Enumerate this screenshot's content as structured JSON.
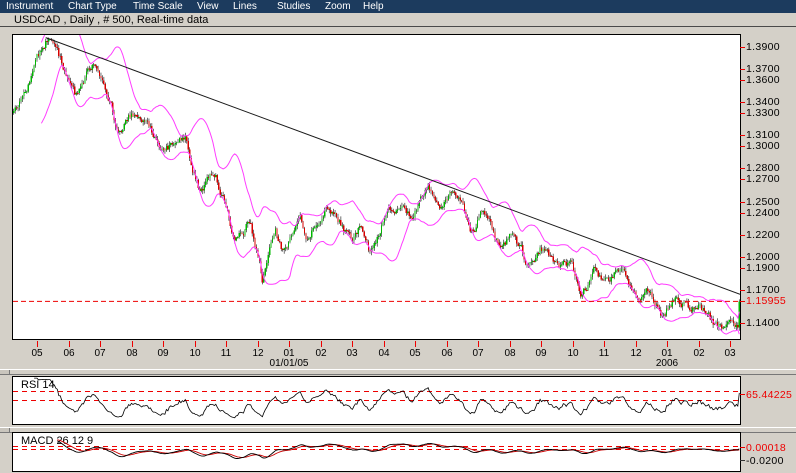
{
  "menu": {
    "items": [
      {
        "label": "Instrument"
      },
      {
        "label": "Chart Type"
      },
      {
        "label": "Time Scale"
      },
      {
        "label": "View"
      },
      {
        "label": "Lines"
      },
      {
        "label": "Studies"
      },
      {
        "label": "Zoom"
      },
      {
        "label": "Help"
      }
    ]
  },
  "title_bar": {
    "text": "USDCAD , Daily , # 500, Real-time data"
  },
  "chart": {
    "instrument": "USDCAD",
    "timeframe": "Daily",
    "bars": 500,
    "last_price": 1.15955,
    "current_price_label": "1.15955",
    "price_axis_labels": [
      "1.3900",
      "1.3700",
      "1.3600",
      "1.3400",
      "1.3300",
      "1.3100",
      "1.3000",
      "1.2800",
      "1.2700",
      "1.2500",
      "1.2400",
      "1.2200",
      "1.2000",
      "1.1900",
      "1.1700",
      "1.1400"
    ],
    "months": [
      "05",
      "06",
      "07",
      "08",
      "09",
      "10",
      "11",
      "12",
      "01",
      "02",
      "03",
      "04",
      "05",
      "06",
      "07",
      "08",
      "09",
      "10",
      "11",
      "12",
      "01",
      "02",
      "03"
    ],
    "year_labels": [
      {
        "text": "01/01/05",
        "month_index": 8
      },
      {
        "text": "2006",
        "month_index": 20
      }
    ],
    "price_path": [
      [
        0,
        1.33
      ],
      [
        24,
        1.397
      ],
      [
        42,
        1.347
      ],
      [
        55,
        1.372
      ],
      [
        73,
        1.312
      ],
      [
        84,
        1.331
      ],
      [
        104,
        1.296
      ],
      [
        118,
        1.307
      ],
      [
        128,
        1.262
      ],
      [
        139,
        1.278
      ],
      [
        152,
        1.218
      ],
      [
        163,
        1.232
      ],
      [
        171,
        1.176
      ],
      [
        180,
        1.224
      ],
      [
        185,
        1.202
      ],
      [
        197,
        1.238
      ],
      [
        204,
        1.216
      ],
      [
        214,
        1.249
      ],
      [
        225,
        1.232
      ],
      [
        233,
        1.207
      ],
      [
        238,
        1.226
      ],
      [
        245,
        1.202
      ],
      [
        255,
        1.238
      ],
      [
        266,
        1.248
      ],
      [
        274,
        1.236
      ],
      [
        285,
        1.266
      ],
      [
        293,
        1.249
      ],
      [
        304,
        1.254
      ],
      [
        314,
        1.226
      ],
      [
        323,
        1.242
      ],
      [
        331,
        1.212
      ],
      [
        342,
        1.222
      ],
      [
        352,
        1.196
      ],
      [
        362,
        1.211
      ],
      [
        372,
        1.186
      ],
      [
        383,
        1.192
      ],
      [
        390,
        1.166
      ],
      [
        400,
        1.186
      ],
      [
        410,
        1.172
      ],
      [
        418,
        1.19
      ],
      [
        428,
        1.166
      ],
      [
        438,
        1.176
      ],
      [
        446,
        1.147
      ],
      [
        455,
        1.166
      ],
      [
        465,
        1.152
      ],
      [
        472,
        1.161
      ],
      [
        480,
        1.141
      ],
      [
        487,
        1.133
      ],
      [
        493,
        1.138
      ],
      [
        497,
        1.134
      ],
      [
        499,
        1.15955
      ]
    ],
    "trendline": {
      "from_bar": 22,
      "from_price": 1.3985,
      "to_bar": 500,
      "to_price": 1.166
    },
    "bollinger": {
      "period": 20,
      "deviations": 2
    },
    "colors": {
      "up_candle": "#00b800",
      "down_candle": "#d80000",
      "wick": "#111111",
      "band": "#ff3dff",
      "trend": "#1a1a1a",
      "dashed_level": "#ee0000",
      "menubar": "#1c3b5e",
      "window_bg": "#d4d0c8"
    }
  },
  "rsi": {
    "label": "RSI 14",
    "period": 14,
    "value_label": "65.44225",
    "value": 65.44225,
    "levels": [
      70,
      50
    ]
  },
  "macd": {
    "label": "MACD 26 12 9",
    "slow": 26,
    "fast": 12,
    "signal": 9,
    "value_label": "0.00018",
    "value": 0.00018,
    "axis_label": "-0.0200",
    "axis_value": -0.02
  }
}
